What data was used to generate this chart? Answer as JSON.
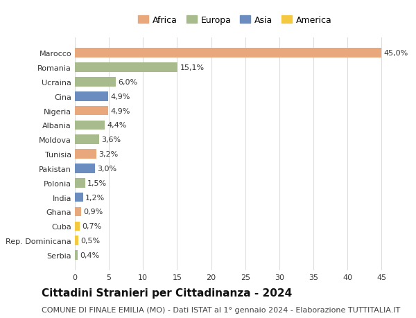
{
  "countries": [
    "Marocco",
    "Romania",
    "Ucraina",
    "Cina",
    "Nigeria",
    "Albania",
    "Moldova",
    "Tunisia",
    "Pakistan",
    "Polonia",
    "India",
    "Ghana",
    "Cuba",
    "Rep. Dominicana",
    "Serbia"
  ],
  "values": [
    45.0,
    15.1,
    6.0,
    4.9,
    4.9,
    4.4,
    3.6,
    3.2,
    3.0,
    1.5,
    1.2,
    0.9,
    0.7,
    0.5,
    0.4
  ],
  "labels": [
    "45,0%",
    "15,1%",
    "6,0%",
    "4,9%",
    "4,9%",
    "4,4%",
    "3,6%",
    "3,2%",
    "3,0%",
    "1,5%",
    "1,2%",
    "0,9%",
    "0,7%",
    "0,5%",
    "0,4%"
  ],
  "continents": [
    "Africa",
    "Europa",
    "Europa",
    "Asia",
    "Africa",
    "Europa",
    "Europa",
    "Africa",
    "Asia",
    "Europa",
    "Asia",
    "Africa",
    "America",
    "America",
    "Europa"
  ],
  "colors": {
    "Africa": "#E8A87C",
    "Europa": "#A8BB8C",
    "Asia": "#6B8CBF",
    "America": "#F5C842"
  },
  "legend_items": [
    "Africa",
    "Europa",
    "Asia",
    "America"
  ],
  "legend_colors": [
    "#E8A87C",
    "#A8BB8C",
    "#6B8CBF",
    "#F5C842"
  ],
  "title": "Cittadini Stranieri per Cittadinanza - 2024",
  "subtitle": "COMUNE DI FINALE EMILIA (MO) - Dati ISTAT al 1° gennaio 2024 - Elaborazione TUTTITALIA.IT",
  "xlim": [
    0,
    47
  ],
  "xticks": [
    0,
    5,
    10,
    15,
    20,
    25,
    30,
    35,
    40,
    45
  ],
  "background_color": "#ffffff",
  "grid_color": "#dddddd",
  "bar_height": 0.65,
  "title_fontsize": 11,
  "subtitle_fontsize": 8,
  "label_fontsize": 8,
  "tick_fontsize": 8,
  "legend_fontsize": 9
}
